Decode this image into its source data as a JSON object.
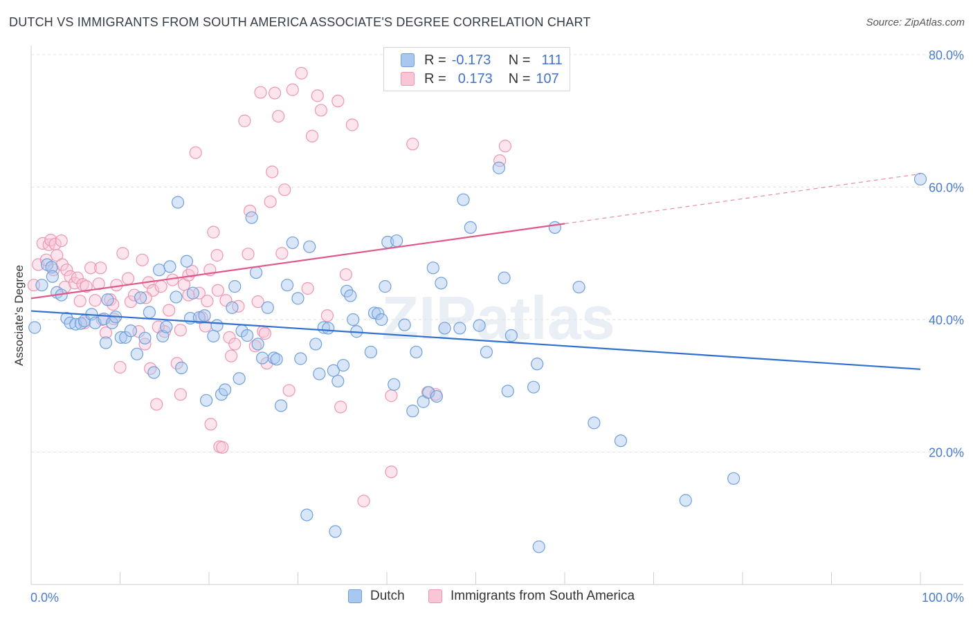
{
  "title": "DUTCH VS IMMIGRANTS FROM SOUTH AMERICA ASSOCIATE'S DEGREE CORRELATION CHART",
  "source": "Source: ZipAtlas.com",
  "watermark": "ZIPatlas",
  "legend": {
    "rows": [
      {
        "r_label": "R =",
        "r_value": "-0.173",
        "n_label": "N =",
        "n_value": "111",
        "color": "#a9c8f0",
        "border": "#6f9fdc"
      },
      {
        "r_label": "R =",
        "r_value": "0.173",
        "n_label": "N =",
        "n_value": "107",
        "color": "#f9c6d6",
        "border": "#ee95b2"
      }
    ]
  },
  "bottom_legend": {
    "dutch": "Dutch",
    "immigrants": "Immigrants from South America"
  },
  "chart_data": {
    "type": "scatter",
    "title": "DUTCH VS IMMIGRANTS FROM SOUTH AMERICA ASSOCIATE'S DEGREE CORRELATION CHART",
    "xlabel": "",
    "ylabel": "Associate's Degree",
    "xlim": [
      0,
      100
    ],
    "ylim": [
      0,
      80
    ],
    "x_tick_labels": [
      "0.0%",
      "100.0%"
    ],
    "y_ticks": [
      20,
      40,
      60,
      80
    ],
    "y_tick_labels": [
      "20.0%",
      "40.0%",
      "60.0%",
      "80.0%"
    ],
    "grid": true,
    "series": [
      {
        "name": "Dutch",
        "color": "#a9c8f0",
        "stroke": "#6f9fdc",
        "trend_color": "#2f6fd0",
        "trend": {
          "x0": 0,
          "y0": 41.3,
          "x1": 100,
          "y1": 32.5,
          "dashed_from": null
        },
        "points": [
          [
            0.4,
            38.8
          ],
          [
            1.2,
            45.2
          ],
          [
            1.8,
            48.3
          ],
          [
            2.3,
            47.9
          ],
          [
            2.4,
            46.5
          ],
          [
            2.9,
            44.1
          ],
          [
            3.4,
            43.7
          ],
          [
            4.0,
            40.2
          ],
          [
            4.4,
            39.5
          ],
          [
            5.0,
            39.3
          ],
          [
            5.6,
            39.4
          ],
          [
            6.0,
            39.8
          ],
          [
            6.8,
            40.8
          ],
          [
            7.2,
            39.5
          ],
          [
            8.2,
            40.1
          ],
          [
            8.4,
            36.5
          ],
          [
            8.6,
            43.0
          ],
          [
            9.1,
            39.5
          ],
          [
            9.5,
            40.4
          ],
          [
            10.1,
            37.3
          ],
          [
            10.6,
            37.3
          ],
          [
            11.2,
            38.3
          ],
          [
            11.9,
            34.8
          ],
          [
            12.3,
            43.3
          ],
          [
            12.8,
            37.2
          ],
          [
            13.3,
            41.1
          ],
          [
            13.8,
            32.0
          ],
          [
            14.4,
            47.5
          ],
          [
            14.8,
            37.5
          ],
          [
            15.2,
            38.9
          ],
          [
            15.6,
            48.0
          ],
          [
            16.3,
            43.4
          ],
          [
            16.5,
            57.7
          ],
          [
            16.9,
            32.7
          ],
          [
            17.5,
            48.8
          ],
          [
            17.9,
            40.2
          ],
          [
            18.2,
            44.0
          ],
          [
            18.9,
            40.3
          ],
          [
            19.5,
            40.6
          ],
          [
            19.7,
            27.8
          ],
          [
            20.5,
            37.5
          ],
          [
            20.9,
            39.1
          ],
          [
            21.4,
            28.7
          ],
          [
            21.8,
            29.4
          ],
          [
            22.6,
            41.8
          ],
          [
            22.9,
            45.0
          ],
          [
            23.4,
            31.1
          ],
          [
            23.7,
            38.3
          ],
          [
            24.3,
            37.6
          ],
          [
            24.8,
            55.4
          ],
          [
            25.3,
            47.1
          ],
          [
            25.5,
            36.3
          ],
          [
            26.0,
            34.2
          ],
          [
            26.6,
            41.8
          ],
          [
            27.3,
            34.2
          ],
          [
            27.6,
            34.0
          ],
          [
            28.1,
            27.0
          ],
          [
            28.8,
            45.2
          ],
          [
            29.4,
            51.6
          ],
          [
            30.0,
            43.2
          ],
          [
            30.3,
            34.1
          ],
          [
            31.3,
            51.0
          ],
          [
            32.0,
            36.3
          ],
          [
            32.4,
            31.8
          ],
          [
            32.9,
            38.8
          ],
          [
            33.4,
            38.7
          ],
          [
            34.0,
            32.3
          ],
          [
            34.5,
            30.7
          ],
          [
            35.1,
            33.1
          ],
          [
            35.5,
            44.3
          ],
          [
            35.9,
            43.6
          ],
          [
            36.2,
            40.0
          ],
          [
            36.6,
            38.2
          ],
          [
            38.2,
            35.1
          ],
          [
            38.6,
            41.0
          ],
          [
            39.0,
            40.9
          ],
          [
            39.4,
            40.0
          ],
          [
            39.8,
            45.0
          ],
          [
            40.1,
            51.7
          ],
          [
            40.8,
            30.2
          ],
          [
            41.1,
            51.9
          ],
          [
            42.0,
            39.2
          ],
          [
            42.9,
            26.2
          ],
          [
            43.3,
            35.1
          ],
          [
            44.1,
            27.6
          ],
          [
            44.7,
            29.0
          ],
          [
            45.2,
            47.8
          ],
          [
            45.6,
            28.4
          ],
          [
            46.1,
            45.5
          ],
          [
            46.5,
            38.7
          ],
          [
            48.2,
            38.7
          ],
          [
            48.6,
            58.1
          ],
          [
            49.4,
            53.9
          ],
          [
            50.4,
            39.1
          ],
          [
            51.2,
            35.1
          ],
          [
            52.6,
            62.9
          ],
          [
            53.2,
            46.3
          ],
          [
            53.6,
            29.2
          ],
          [
            54.0,
            37.6
          ],
          [
            56.5,
            29.8
          ],
          [
            56.9,
            33.3
          ],
          [
            58.9,
            53.9
          ],
          [
            61.6,
            44.9
          ],
          [
            63.3,
            24.4
          ],
          [
            66.3,
            21.7
          ],
          [
            73.6,
            12.7
          ],
          [
            79.0,
            16.0
          ],
          [
            100.0,
            61.2
          ],
          [
            31.0,
            10.5
          ],
          [
            34.2,
            8.0
          ],
          [
            57.1,
            5.7
          ]
        ]
      },
      {
        "name": "Immigrants from South America",
        "color": "#f9c6d6",
        "stroke": "#ee95b2",
        "trend_color": "#e0588a",
        "trend": {
          "x0": 0,
          "y0": 43.2,
          "x1": 100,
          "y1": 62.0,
          "dashed_from": 60.0
        },
        "points": [
          [
            0.3,
            45.2
          ],
          [
            0.8,
            48.3
          ],
          [
            1.3,
            51.5
          ],
          [
            1.7,
            49.0
          ],
          [
            2.0,
            51.3
          ],
          [
            2.2,
            52.0
          ],
          [
            2.5,
            47.5
          ],
          [
            2.7,
            51.4
          ],
          [
            2.9,
            49.7
          ],
          [
            3.4,
            51.9
          ],
          [
            3.5,
            48.3
          ],
          [
            3.8,
            44.9
          ],
          [
            4.0,
            47.5
          ],
          [
            4.4,
            46.5
          ],
          [
            4.9,
            45.5
          ],
          [
            5.2,
            46.3
          ],
          [
            5.5,
            42.8
          ],
          [
            5.8,
            45.3
          ],
          [
            6.2,
            45.0
          ],
          [
            6.7,
            47.8
          ],
          [
            7.2,
            42.9
          ],
          [
            7.6,
            45.4
          ],
          [
            8.0,
            40.0
          ],
          [
            8.4,
            38.0
          ],
          [
            8.9,
            43.0
          ],
          [
            9.2,
            42.3
          ],
          [
            9.6,
            45.2
          ],
          [
            10.0,
            32.8
          ],
          [
            10.3,
            50.0
          ],
          [
            10.9,
            46.2
          ],
          [
            11.2,
            42.7
          ],
          [
            11.6,
            43.7
          ],
          [
            12.1,
            38.2
          ],
          [
            12.5,
            49.0
          ],
          [
            12.8,
            36.3
          ],
          [
            13.2,
            45.6
          ],
          [
            13.4,
            32.6
          ],
          [
            13.7,
            44.4
          ],
          [
            14.1,
            27.2
          ],
          [
            14.6,
            45.0
          ],
          [
            15.0,
            38.2
          ],
          [
            15.5,
            41.4
          ],
          [
            15.9,
            46.0
          ],
          [
            16.4,
            33.4
          ],
          [
            16.8,
            38.4
          ],
          [
            17.2,
            45.3
          ],
          [
            17.7,
            46.7
          ],
          [
            18.1,
            47.3
          ],
          [
            18.5,
            65.2
          ],
          [
            18.9,
            44.0
          ],
          [
            19.2,
            40.3
          ],
          [
            19.6,
            39.0
          ],
          [
            20.1,
            47.5
          ],
          [
            20.2,
            24.2
          ],
          [
            20.5,
            53.2
          ],
          [
            20.9,
            49.7
          ],
          [
            21.2,
            20.8
          ],
          [
            21.5,
            20.7
          ],
          [
            21.9,
            42.9
          ],
          [
            22.3,
            37.3
          ],
          [
            22.5,
            34.5
          ],
          [
            22.9,
            36.3
          ],
          [
            23.3,
            42.0
          ],
          [
            24.0,
            70.0
          ],
          [
            24.4,
            49.9
          ],
          [
            24.6,
            56.4
          ],
          [
            25.2,
            36.0
          ],
          [
            25.5,
            42.7
          ],
          [
            25.8,
            74.3
          ],
          [
            26.1,
            38.2
          ],
          [
            26.3,
            37.9
          ],
          [
            26.5,
            33.4
          ],
          [
            26.9,
            57.8
          ],
          [
            27.1,
            62.3
          ],
          [
            27.4,
            74.2
          ],
          [
            27.8,
            70.7
          ],
          [
            28.2,
            50.0
          ],
          [
            28.5,
            59.6
          ],
          [
            29.0,
            29.3
          ],
          [
            29.4,
            74.7
          ],
          [
            30.4,
            77.2
          ],
          [
            31.1,
            44.7
          ],
          [
            31.6,
            67.7
          ],
          [
            32.2,
            73.8
          ],
          [
            32.6,
            71.6
          ],
          [
            33.3,
            40.6
          ],
          [
            34.5,
            73.0
          ],
          [
            34.8,
            26.8
          ],
          [
            35.4,
            46.8
          ],
          [
            36.1,
            69.4
          ],
          [
            37.4,
            12.6
          ],
          [
            40.5,
            17.0
          ],
          [
            40.5,
            28.5
          ],
          [
            42.9,
            66.5
          ],
          [
            44.6,
            29.0
          ],
          [
            45.5,
            28.7
          ],
          [
            52.7,
            64.0
          ],
          [
            53.3,
            66.2
          ],
          [
            16.8,
            28.7
          ],
          [
            12.9,
            43.3
          ],
          [
            7.8,
            47.8
          ],
          [
            9.3,
            40.1
          ],
          [
            17.7,
            43.7
          ],
          [
            19.8,
            42.8
          ],
          [
            14.3,
            38.9
          ],
          [
            21.0,
            44.4
          ],
          [
            6.0,
            39.5
          ]
        ]
      }
    ]
  }
}
